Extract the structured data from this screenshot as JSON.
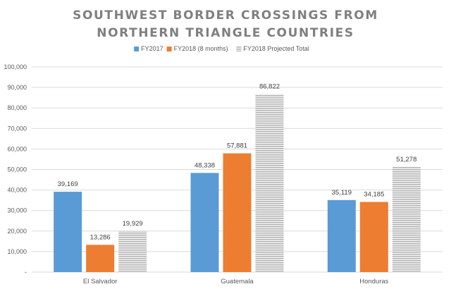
{
  "chart_data": {
    "type": "bar",
    "title_lines": [
      "SOUTHWEST BORDER CROSSINGS FROM",
      "NORTHERN TRIANGLE COUNTRIES"
    ],
    "categories": [
      "El Salvador",
      "Guatemala",
      "Honduras"
    ],
    "series": [
      {
        "name": "FY2017",
        "color": "#5b9bd5",
        "pattern": "solid",
        "values": [
          39169,
          48338,
          35119
        ],
        "labels": [
          "39,169",
          "48,338",
          "35,119"
        ]
      },
      {
        "name": "FY2018 (8 months)",
        "color": "#ed7d31",
        "pattern": "solid",
        "values": [
          13286,
          57881,
          34185
        ],
        "labels": [
          "13,286",
          "57,881",
          "34,185"
        ]
      },
      {
        "name": "FY2018 Projected Total",
        "color": "#a5a5a5",
        "pattern": "horizontal-stripes",
        "values": [
          19929,
          86822,
          51278
        ],
        "labels": [
          "19,929",
          "86,822",
          "51,278"
        ]
      }
    ],
    "y_ticks": [
      0,
      10000,
      20000,
      30000,
      40000,
      50000,
      60000,
      70000,
      80000,
      90000,
      100000
    ],
    "y_tick_labels": [
      "-",
      "10,000",
      "20,000",
      "30,000",
      "40,000",
      "50,000",
      "60,000",
      "70,000",
      "80,000",
      "90,000",
      "100,000"
    ],
    "ylim": [
      0,
      100000
    ],
    "gridlines": true,
    "legend_position": "top-center",
    "xlabel": "",
    "ylabel": ""
  }
}
